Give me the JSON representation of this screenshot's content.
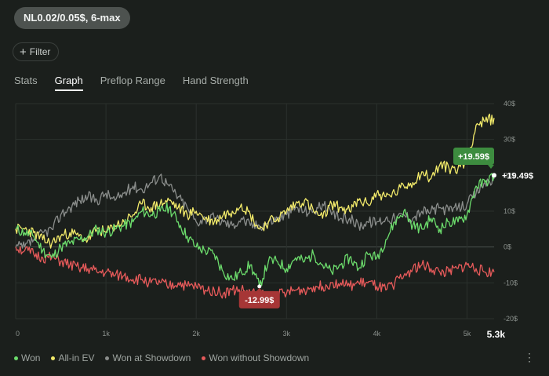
{
  "stake_label": "NL0.02/0.05$, 6-max",
  "filter": {
    "label": "Filter",
    "icon": "plus-icon"
  },
  "tabs": [
    {
      "label": "Stats",
      "active": false
    },
    {
      "label": "Graph",
      "active": true
    },
    {
      "label": "Preflop Range",
      "active": false
    },
    {
      "label": "Hand Strength",
      "active": false
    }
  ],
  "colors": {
    "won": "#6cdc6c",
    "allin_ev": "#f2ea6a",
    "showdown": "#8a8d8b",
    "without_showdown": "#e65a5a",
    "badge_high": "#3d8c3f",
    "badge_low": "#a63636"
  },
  "chart_data": {
    "type": "line",
    "x_ticks": [
      "0",
      "1k",
      "2k",
      "3k",
      "4k",
      "5k"
    ],
    "x_tick_values": [
      0,
      1000,
      2000,
      3000,
      4000,
      5000
    ],
    "x_max_label": "5.3k",
    "xlim": [
      0,
      5300
    ],
    "y_ticks": [
      "40$",
      "30$",
      "20$",
      "10$",
      "0$",
      "-10$",
      "-20$"
    ],
    "y_tick_values": [
      40,
      30,
      20,
      10,
      0,
      -10,
      -20
    ],
    "ylim": [
      -20,
      40
    ],
    "grid": true,
    "legend_position": "bottom-left",
    "annotations": {
      "max_badge": "+19.59$",
      "min_badge": "-12.99$",
      "end_label": "+19.49$"
    },
    "series": [
      {
        "name": "Won",
        "key": "won",
        "x": [
          0,
          100,
          200,
          300,
          400,
          500,
          600,
          700,
          800,
          900,
          1000,
          1100,
          1200,
          1300,
          1400,
          1500,
          1600,
          1700,
          1800,
          1900,
          2000,
          2100,
          2200,
          2300,
          2400,
          2500,
          2600,
          2700,
          2800,
          2900,
          3000,
          3100,
          3200,
          3300,
          3400,
          3500,
          3600,
          3700,
          3800,
          3900,
          4000,
          4100,
          4200,
          4300,
          4400,
          4500,
          4600,
          4700,
          4800,
          4900,
          5000,
          5100,
          5200,
          5300
        ],
        "y": [
          5,
          4,
          3,
          -1,
          -3,
          0,
          1,
          2,
          3,
          5,
          4,
          5,
          6,
          7,
          10,
          9,
          10,
          11,
          7,
          3,
          0,
          -1,
          -2,
          -7,
          -9,
          -7,
          -5,
          -11,
          -4,
          -4,
          -6,
          -3,
          -4,
          -2,
          -5,
          -7,
          -5,
          -3,
          -6,
          -2,
          -3,
          2,
          7,
          10,
          6,
          5,
          8,
          5,
          7,
          7,
          9,
          17,
          18,
          20
        ]
      },
      {
        "name": "All-in EV",
        "key": "allin_ev",
        "x": [
          0,
          100,
          200,
          300,
          400,
          500,
          600,
          700,
          800,
          900,
          1000,
          1100,
          1200,
          1300,
          1400,
          1500,
          1600,
          1700,
          1800,
          1900,
          2000,
          2100,
          2200,
          2300,
          2400,
          2500,
          2600,
          2700,
          2800,
          2900,
          3000,
          3100,
          3200,
          3300,
          3400,
          3500,
          3600,
          3700,
          3800,
          3900,
          4000,
          4100,
          4200,
          4300,
          4400,
          4500,
          4600,
          4700,
          4800,
          4900,
          5000,
          5100,
          5200,
          5300
        ],
        "y": [
          5,
          5,
          4,
          2,
          1,
          3,
          4,
          3,
          2,
          5,
          4,
          6,
          7,
          9,
          12,
          11,
          12,
          13,
          11,
          9,
          10,
          8,
          7,
          9,
          10,
          12,
          9,
          5,
          7,
          8,
          10,
          12,
          13,
          10,
          8,
          12,
          11,
          10,
          13,
          12,
          15,
          14,
          15,
          17,
          18,
          21,
          19,
          23,
          22,
          22,
          24,
          34,
          35,
          36
        ]
      },
      {
        "name": "Won at Showdown",
        "key": "showdown",
        "x": [
          0,
          100,
          200,
          300,
          400,
          500,
          600,
          700,
          800,
          900,
          1000,
          1100,
          1200,
          1300,
          1400,
          1500,
          1600,
          1700,
          1800,
          1900,
          2000,
          2100,
          2200,
          2300,
          2400,
          2500,
          2600,
          2700,
          2800,
          2900,
          3000,
          3100,
          3200,
          3300,
          3400,
          3500,
          3600,
          3700,
          3800,
          3900,
          4000,
          4100,
          4200,
          4300,
          4400,
          4500,
          4600,
          4700,
          4800,
          4900,
          5000,
          5100,
          5200,
          5300
        ],
        "y": [
          0,
          0,
          2,
          4,
          5,
          9,
          11,
          13,
          14,
          13,
          15,
          13,
          15,
          17,
          16,
          18,
          20,
          17,
          14,
          11,
          7,
          8,
          8,
          7,
          6,
          8,
          6,
          6,
          7,
          8,
          9,
          11,
          10,
          10,
          12,
          9,
          8,
          8,
          6,
          7,
          7,
          8,
          8,
          9,
          8,
          10,
          10,
          11,
          10,
          11,
          12,
          15,
          18,
          19
        ]
      },
      {
        "name": "Won without Showdown",
        "key": "without_showdown",
        "x": [
          0,
          100,
          200,
          300,
          400,
          500,
          600,
          700,
          800,
          900,
          1000,
          1100,
          1200,
          1300,
          1400,
          1500,
          1600,
          1700,
          1800,
          1900,
          2000,
          2100,
          2200,
          2300,
          2400,
          2500,
          2600,
          2700,
          2800,
          2900,
          3000,
          3100,
          3200,
          3300,
          3400,
          3500,
          3600,
          3700,
          3800,
          3900,
          4000,
          4100,
          4200,
          4300,
          4400,
          4500,
          4600,
          4700,
          4800,
          4900,
          5000,
          5100,
          5200,
          5300
        ],
        "y": [
          0,
          -1,
          -2,
          -3,
          -3,
          -4,
          -5,
          -6,
          -6,
          -7,
          -7,
          -8,
          -8,
          -9,
          -9,
          -10,
          -10,
          -11,
          -10,
          -11,
          -11,
          -12,
          -12,
          -13,
          -12,
          -12,
          -13,
          -13,
          -14,
          -13,
          -13,
          -12,
          -12,
          -11,
          -11,
          -10,
          -10,
          -11,
          -10,
          -10,
          -11,
          -12,
          -10,
          -8,
          -6,
          -5,
          -6,
          -7,
          -7,
          -6,
          -5,
          -6,
          -7,
          -7
        ]
      }
    ]
  },
  "legend": [
    {
      "label": "Won",
      "key": "won"
    },
    {
      "label": "All-in EV",
      "key": "allin_ev"
    },
    {
      "label": "Won at Showdown",
      "key": "showdown"
    },
    {
      "label": "Won without Showdown",
      "key": "without_showdown"
    }
  ],
  "more_icon": "more-vertical-icon"
}
